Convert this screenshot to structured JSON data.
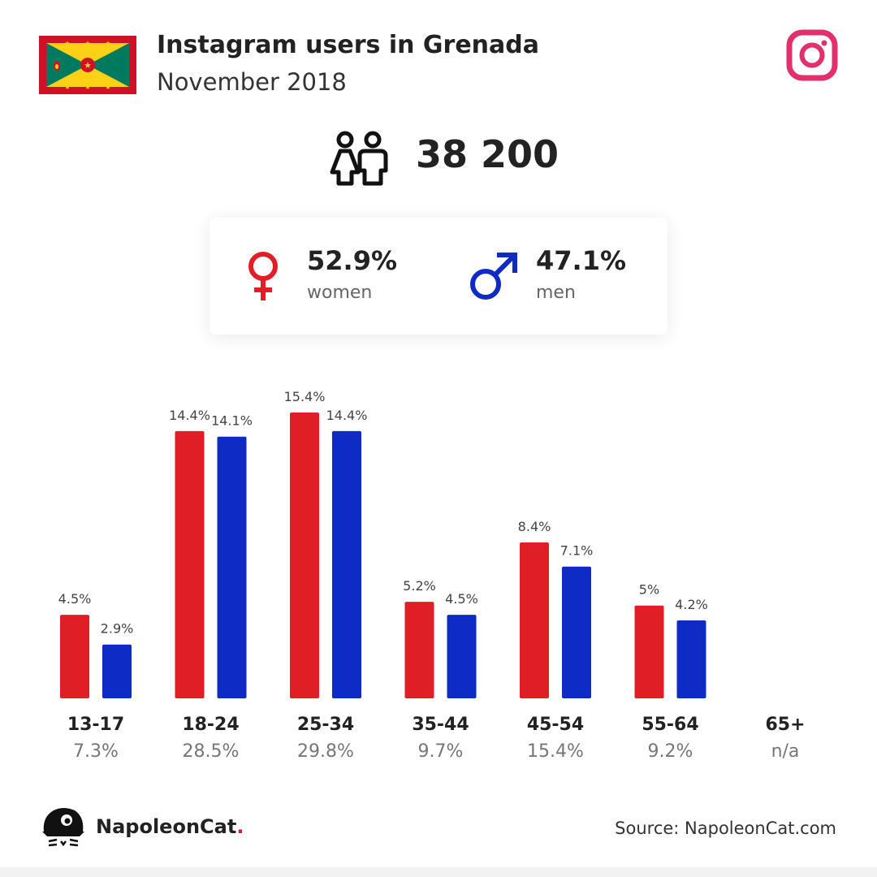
{
  "header": {
    "title": "Instagram users in Grenada",
    "subtitle": "November 2018",
    "flag_icon": "grenada-flag",
    "platform_icon": "instagram-icon"
  },
  "total": {
    "icon": "users-icon",
    "value": "38 200"
  },
  "gender": {
    "women": {
      "pct": "52.9%",
      "label": "women",
      "icon": "female-symbol-icon",
      "color": "#e01e25"
    },
    "men": {
      "pct": "47.1%",
      "label": "men",
      "icon": "male-symbol-icon",
      "color": "#0e2cc5"
    }
  },
  "chart_data": {
    "type": "bar",
    "categories": [
      "13-17",
      "18-24",
      "25-34",
      "35-44",
      "45-54",
      "55-64",
      "65+"
    ],
    "group_totals": [
      "7.3%",
      "28.5%",
      "29.8%",
      "9.7%",
      "15.4%",
      "9.2%",
      "n/a"
    ],
    "series": [
      {
        "color": "#e01e25",
        "values": [
          4.5,
          14.4,
          15.4,
          5.2,
          8.4,
          5.0,
          null
        ],
        "labels": [
          "4.5%",
          "14.4%",
          "15.4%",
          "5.2%",
          "8.4%",
          "5%",
          ""
        ]
      },
      {
        "color": "#0e2cc5",
        "values": [
          2.9,
          14.1,
          14.4,
          4.5,
          7.1,
          4.2,
          null
        ],
        "labels": [
          "2.9%",
          "14.1%",
          "14.4%",
          "4.5%",
          "7.1%",
          "4.2%",
          ""
        ]
      }
    ],
    "ylim": [
      0,
      15.4
    ],
    "grid": false
  },
  "footer": {
    "brand_name": "NapoleonCat",
    "brand_dot": ".",
    "logo_icon": "napoleoncat-logo-icon",
    "source": "Source: NapoleonCat.com"
  }
}
